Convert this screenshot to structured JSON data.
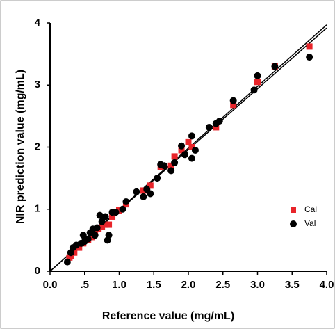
{
  "chart_data": {
    "type": "scatter",
    "xlabel": "Reference  value (mg/mL)",
    "ylabel": "NIR prediction  value (mg/mL)",
    "xlim": [
      0,
      4
    ],
    "ylim": [
      0,
      4
    ],
    "xticks": [
      {
        "value": 0,
        "label": "0.0"
      },
      {
        "value": 0.5,
        "label": ".5"
      },
      {
        "value": 1,
        "label": "1.0"
      },
      {
        "value": 1.5,
        "label": "1.5"
      },
      {
        "value": 2,
        "label": "2.0"
      },
      {
        "value": 2.5,
        "label": "2.5"
      },
      {
        "value": 3,
        "label": "3.0"
      },
      {
        "value": 3.5,
        "label": "3.5"
      },
      {
        "value": 4,
        "label": "4.0"
      }
    ],
    "yticks": [
      0,
      1,
      2,
      3,
      4
    ],
    "legend": "lower right",
    "fit_lines": [
      {
        "color": "#000000",
        "x": [
          0,
          4
        ],
        "y": [
          0,
          3.97
        ]
      },
      {
        "color": "#000000",
        "x": [
          0,
          4
        ],
        "y": [
          0,
          3.92
        ]
      }
    ],
    "series": [
      {
        "name": "Cal",
        "color": "#e8242a",
        "marker": "square",
        "x": [
          0.28,
          0.3,
          0.35,
          0.42,
          0.48,
          0.55,
          0.6,
          0.65,
          0.7,
          0.75,
          0.8,
          0.85,
          0.9,
          1.0,
          1.1,
          1.35,
          1.45,
          1.6,
          1.75,
          1.8,
          1.9,
          2.0,
          2.05,
          2.4,
          2.65,
          3.0,
          3.25,
          3.75
        ],
        "values": [
          0.22,
          0.25,
          0.3,
          0.38,
          0.45,
          0.5,
          0.55,
          0.62,
          0.68,
          0.72,
          0.75,
          0.75,
          0.88,
          0.98,
          1.08,
          1.3,
          1.38,
          1.68,
          1.7,
          1.85,
          1.95,
          2.08,
          2.0,
          2.32,
          2.68,
          3.05,
          3.3,
          3.62
        ]
      },
      {
        "name": "Val",
        "color": "#000000",
        "marker": "circle",
        "x": [
          0.25,
          0.3,
          0.33,
          0.38,
          0.45,
          0.48,
          0.5,
          0.55,
          0.58,
          0.62,
          0.65,
          0.68,
          0.72,
          0.75,
          0.8,
          0.83,
          0.85,
          0.9,
          0.95,
          1.05,
          1.1,
          1.25,
          1.35,
          1.4,
          1.45,
          1.55,
          1.6,
          1.65,
          1.75,
          1.8,
          1.9,
          1.95,
          2.05,
          2.05,
          2.1,
          2.3,
          2.4,
          2.45,
          2.65,
          2.95,
          3.0,
          3.25,
          3.75
        ],
        "values": [
          0.15,
          0.3,
          0.38,
          0.42,
          0.45,
          0.58,
          0.48,
          0.52,
          0.62,
          0.68,
          0.58,
          0.7,
          0.9,
          0.8,
          0.88,
          0.5,
          0.58,
          0.95,
          0.95,
          1.0,
          1.12,
          1.28,
          1.2,
          1.32,
          1.25,
          1.5,
          1.72,
          1.7,
          1.62,
          1.75,
          2.02,
          1.88,
          1.82,
          2.18,
          1.95,
          2.32,
          2.38,
          2.42,
          2.75,
          2.92,
          3.15,
          3.3,
          3.45
        ]
      }
    ]
  }
}
